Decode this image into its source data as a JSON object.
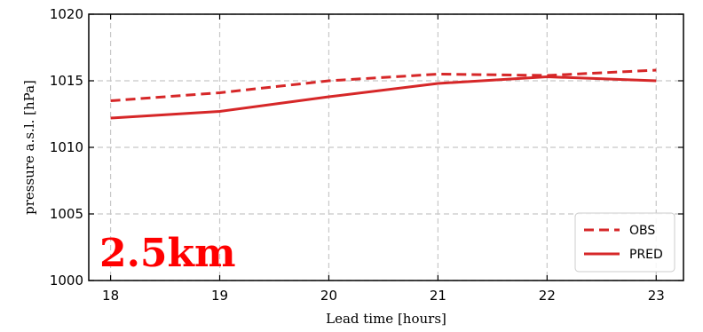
{
  "chart_data": {
    "type": "line",
    "xlabel": "Lead time [hours]",
    "ylabel": "pressure a.s.l. [hPa]",
    "x": [
      18,
      19,
      20,
      21,
      22,
      23
    ],
    "xlim": [
      17.8,
      23.25
    ],
    "ylim": [
      1000,
      1020
    ],
    "xticks": [
      "18",
      "19",
      "20",
      "21",
      "22",
      "23"
    ],
    "yticks": [
      "1000",
      "1005",
      "1010",
      "1015",
      "1020"
    ],
    "grid": true,
    "legend_position": "lower-right",
    "annotation": "2.5km",
    "series": [
      {
        "name": "OBS",
        "style": "dashed",
        "color": "#d62728",
        "values": [
          1013.5,
          1014.1,
          1015.0,
          1015.5,
          1015.4,
          1015.8
        ]
      },
      {
        "name": "PRED",
        "style": "solid",
        "color": "#d62728",
        "values": [
          1012.2,
          1012.7,
          1013.8,
          1014.8,
          1015.3,
          1015.0
        ]
      }
    ]
  }
}
